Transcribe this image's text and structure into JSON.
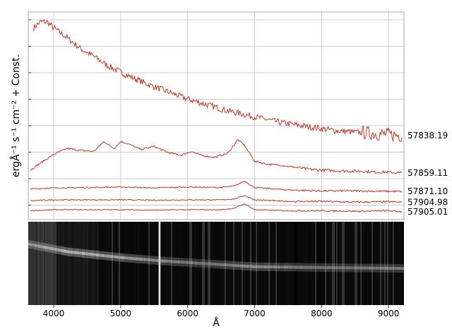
{
  "chart_data": [
    {
      "type": "line",
      "panel": "spectra",
      "ylabel": "ergÅ⁻¹ s⁻¹ cm⁻² + Const.",
      "xlim": [
        3620,
        9230
      ],
      "grid": true,
      "line_color": "#c0392b",
      "series": [
        {
          "name": "57838.19",
          "x": [
            3700,
            3800,
            3900,
            4000,
            4200,
            4400,
            4600,
            4800,
            5000,
            5200,
            5400,
            5600,
            5800,
            6000,
            6200,
            6400,
            6600,
            6800,
            7000,
            7200,
            7400,
            7600,
            7800,
            8000,
            8200,
            8400,
            8600,
            8800,
            9000,
            9200
          ],
          "y": [
            9.2,
            9.5,
            9.5,
            9.2,
            8.7,
            8.15,
            7.75,
            7.3,
            6.95,
            6.65,
            6.35,
            6.1,
            5.85,
            5.6,
            5.4,
            5.2,
            5.0,
            4.85,
            4.7,
            4.55,
            4.4,
            4.3,
            4.2,
            4.1,
            4.0,
            3.95,
            3.9,
            3.85,
            3.8,
            3.75
          ],
          "noise": 0.16
        },
        {
          "name": "57859.11",
          "x": [
            3650,
            3800,
            4000,
            4200,
            4400,
            4600,
            4750,
            4900,
            5000,
            5100,
            5300,
            5500,
            5700,
            5900,
            6050,
            6200,
            6400,
            6600,
            6750,
            6850,
            7000,
            7200,
            7400,
            7600,
            7800,
            8000,
            8200,
            8400,
            8600,
            8800,
            9000,
            9200
          ],
          "y": [
            2.0,
            2.35,
            2.8,
            3.1,
            3.0,
            2.95,
            3.45,
            3.1,
            3.45,
            3.35,
            3.05,
            3.2,
            2.9,
            2.75,
            2.95,
            2.75,
            2.65,
            2.85,
            3.55,
            3.25,
            2.45,
            2.3,
            2.25,
            2.15,
            2.05,
            2.0,
            1.98,
            1.95,
            1.95,
            1.9,
            1.9,
            1.85
          ],
          "noise": 0.045
        },
        {
          "name": "57871.10",
          "x": [
            3650,
            4000,
            4500,
            5000,
            5500,
            6000,
            6500,
            6700,
            6850,
            7000,
            7500,
            8000,
            8500,
            9000,
            9200
          ],
          "y": [
            1.05,
            1.1,
            1.12,
            1.15,
            1.1,
            1.15,
            1.12,
            1.2,
            1.45,
            1.12,
            1.0,
            0.95,
            0.95,
            0.93,
            0.92
          ],
          "noise": 0.03
        },
        {
          "name": "57904.98",
          "x": [
            3650,
            4000,
            4500,
            5000,
            5500,
            6000,
            6500,
            6700,
            6850,
            7000,
            7500,
            8000,
            8500,
            9000,
            9200
          ],
          "y": [
            0.45,
            0.5,
            0.5,
            0.5,
            0.48,
            0.5,
            0.5,
            0.55,
            0.72,
            0.5,
            0.42,
            0.42,
            0.38,
            0.4,
            0.38
          ],
          "noise": 0.03
        },
        {
          "name": "57905.01",
          "x": [
            3650,
            4000,
            4500,
            5000,
            5500,
            6000,
            6500,
            6700,
            6850,
            7000,
            7500,
            8000,
            8500,
            9000,
            9200
          ],
          "y": [
            -0.05,
            0.0,
            0.0,
            0.0,
            -0.02,
            0.0,
            0.0,
            0.08,
            0.3,
            0.0,
            -0.05,
            -0.05,
            -0.08,
            -0.05,
            -0.1
          ],
          "noise": 0.025
        }
      ]
    },
    {
      "type": "heatmap",
      "panel": "2d-spectrum",
      "xlabel": "Å",
      "xlim": [
        3620,
        9230
      ],
      "xticks": [
        "4000",
        "5000",
        "6000",
        "7000",
        "8000",
        "9000"
      ],
      "colormap": "grayscale",
      "trace": {
        "x": [
          3620,
          4200,
          5000,
          5600,
          6200,
          7000,
          8000,
          9230
        ],
        "row_fraction": [
          0.27,
          0.36,
          0.43,
          0.47,
          0.5,
          0.54,
          0.55,
          0.56
        ],
        "brightness": [
          0.55,
          0.7,
          0.62,
          0.55,
          0.45,
          0.55,
          0.45,
          0.5
        ]
      },
      "bright_lines_x": [
        5577
      ],
      "gap_x": [
        7600,
        7640
      ]
    }
  ]
}
